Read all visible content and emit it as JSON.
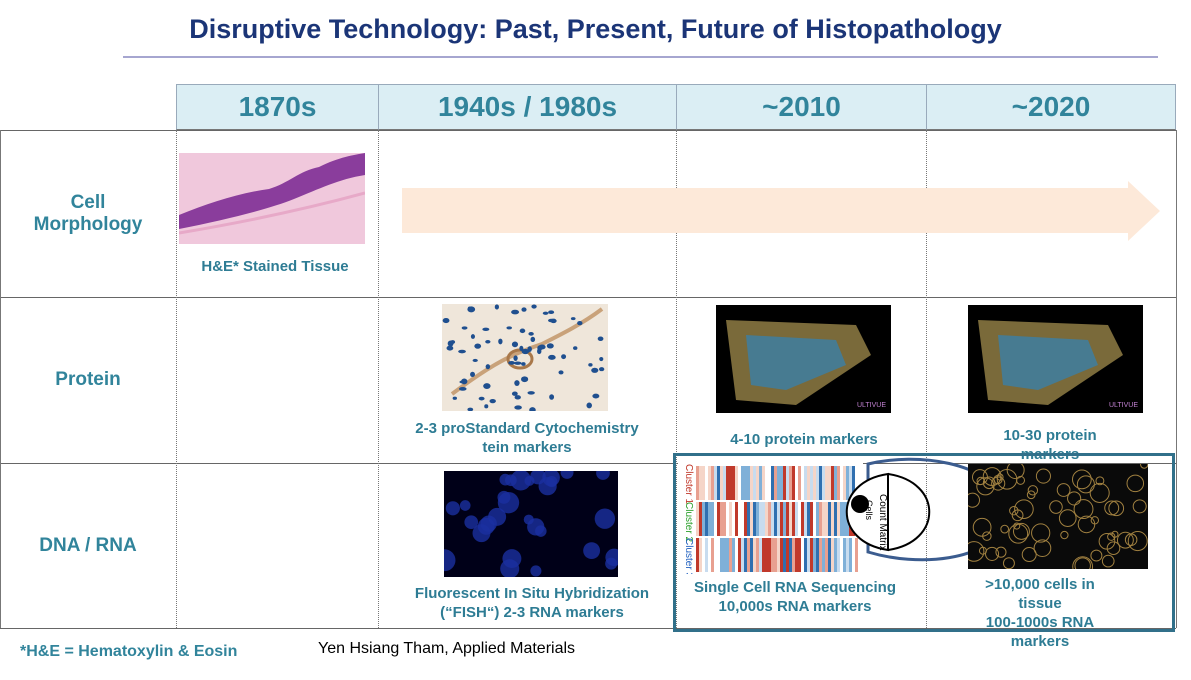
{
  "title": "Disruptive Technology: Past, Present, Future of Histopathology",
  "table": {
    "columns": [
      "1870s",
      "1940s / 1980s",
      "~2010",
      "~2020"
    ],
    "rows": [
      {
        "label": "Cell\nMorphology",
        "captions": [
          "H&E* Stained Tissue",
          null,
          null,
          null
        ]
      },
      {
        "label": "Protein",
        "captions": [
          null,
          "2-3 proStandard Cytochemistry\ntein markers",
          "4-10 protein markers",
          "10-30 protein markers"
        ]
      },
      {
        "label": "DNA / RNA",
        "captions": [
          null,
          "Fluorescent In Situ Hybridization\n(“FISH“) 2-3 RNA markers",
          "Single Cell RNA Sequencing\n10,000s RNA markers",
          ">10,000 cells in tissue\n100-1000s RNA markers"
        ]
      }
    ]
  },
  "figure_labels": {
    "clusters": [
      "Cluster 1",
      "Cluster 2",
      "Cluster 3"
    ],
    "count_matrix": "Count Matrix",
    "cells": "Cells",
    "brand": "ULTIVUE"
  },
  "footnote": "*H&E = Hematoxylin & Eosin",
  "credit": "Yen Hsiang Tham, Applied Materials"
}
